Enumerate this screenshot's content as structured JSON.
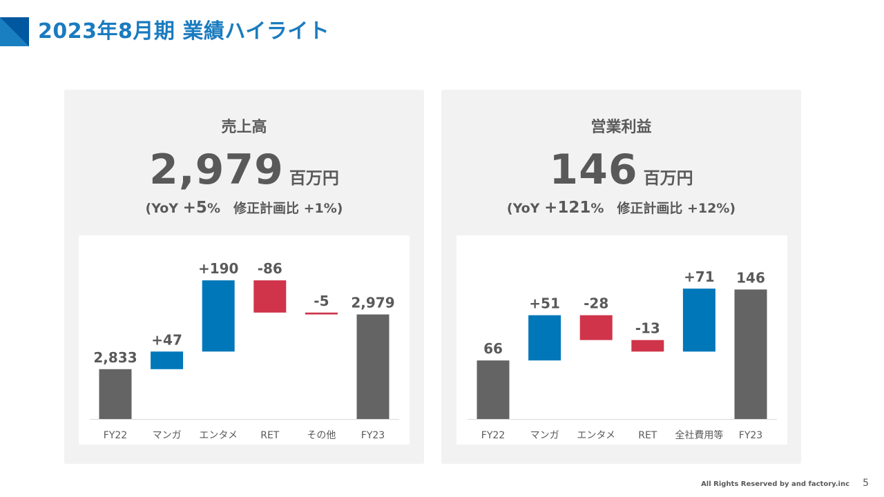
{
  "header": {
    "title": "2023年8月期 業績ハイライト"
  },
  "footer": {
    "copyright": "All Rights Reserved by and factory.inc",
    "page": "5"
  },
  "colors": {
    "accent": "#1a7bbf",
    "total": "#646464",
    "increase": "#0077b9",
    "decrease": "#cf344a"
  },
  "panels": [
    {
      "title": "売上高",
      "value": "2,979",
      "unit": "百万円",
      "sub_open": "(YoY ",
      "yoy": "+5",
      "sub_rest": "%　修正計画比 +1%)"
    },
    {
      "title": "営業利益",
      "value": "146",
      "unit": "百万円",
      "sub_open": "(YoY ",
      "yoy": "+121",
      "sub_rest": "%　修正計画比 +12%)"
    }
  ],
  "chart_data": [
    {
      "type": "waterfall",
      "categories": [
        "FY22",
        "マンガ",
        "エンタメ",
        "RET",
        "その他",
        "FY23"
      ],
      "values": [
        2833,
        47,
        190,
        -86,
        -5,
        2979
      ],
      "kinds": [
        "total",
        "delta",
        "delta",
        "delta",
        "delta",
        "total"
      ],
      "data_labels": [
        "2,833",
        "+47",
        "+190",
        "-86",
        "-5",
        "2,979"
      ],
      "ylim": [
        2700,
        3190
      ],
      "grid": false
    },
    {
      "type": "waterfall",
      "categories": [
        "FY22",
        "マンガ",
        "エンタメ",
        "RET",
        "全社費用等",
        "FY23"
      ],
      "values": [
        66,
        51,
        -28,
        -13,
        71,
        146
      ],
      "kinds": [
        "total",
        "delta",
        "delta",
        "delta",
        "delta",
        "total"
      ],
      "data_labels": [
        "66",
        "+51",
        "-28",
        "-13",
        "+71",
        "146"
      ],
      "ylim": [
        0,
        207
      ],
      "grid": false
    }
  ]
}
